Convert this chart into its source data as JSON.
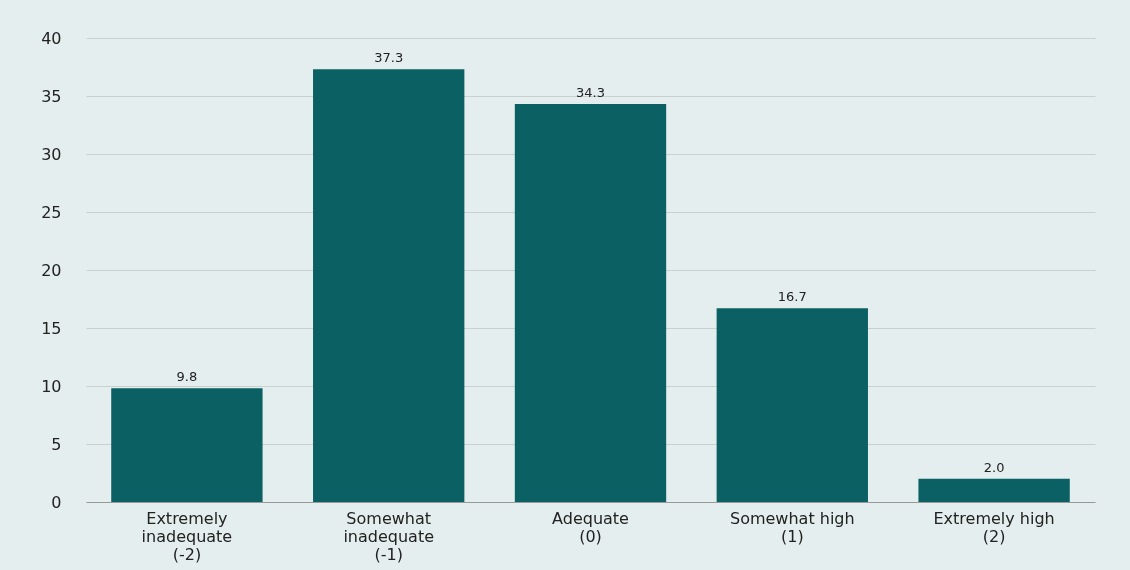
{
  "chart_data": {
    "type": "bar",
    "categories": [
      "Extremely inadequate (-2)",
      "Somewhat inadequate (-1)",
      "Adequate (0)",
      "Somewhat high (1)",
      "Extremely high (2)"
    ],
    "values": [
      9.8,
      37.3,
      34.3,
      16.7,
      2.0
    ],
    "value_labels": [
      "9.8",
      "37.3",
      "34.3",
      "16.7",
      "2.0"
    ],
    "color": "#0b6063",
    "ylim": [
      0,
      40
    ],
    "yticks": [
      0,
      5,
      10,
      15,
      20,
      25,
      30,
      35,
      40
    ],
    "grid": "y"
  }
}
